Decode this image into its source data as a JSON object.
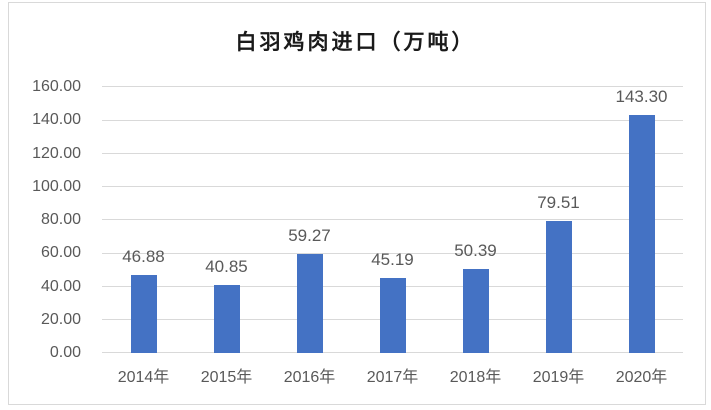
{
  "chart_data": {
    "type": "bar",
    "title": "白羽鸡肉进口（万吨）",
    "categories": [
      "2014年",
      "2015年",
      "2016年",
      "2017年",
      "2018年",
      "2019年",
      "2020年"
    ],
    "values": [
      46.88,
      40.85,
      59.27,
      45.19,
      50.39,
      79.51,
      143.3
    ],
    "data_labels": [
      "46.88",
      "40.85",
      "59.27",
      "45.19",
      "50.39",
      "79.51",
      "143.30"
    ],
    "xlabel": "",
    "ylabel": "",
    "ylim": [
      0,
      160
    ],
    "yticks": [
      "0.00",
      "20.00",
      "40.00",
      "60.00",
      "80.00",
      "100.00",
      "120.00",
      "140.00",
      "160.00"
    ],
    "grid": true,
    "legend": "none",
    "bar_color": "#4472c4"
  },
  "title": "白羽鸡肉进口（万吨）"
}
